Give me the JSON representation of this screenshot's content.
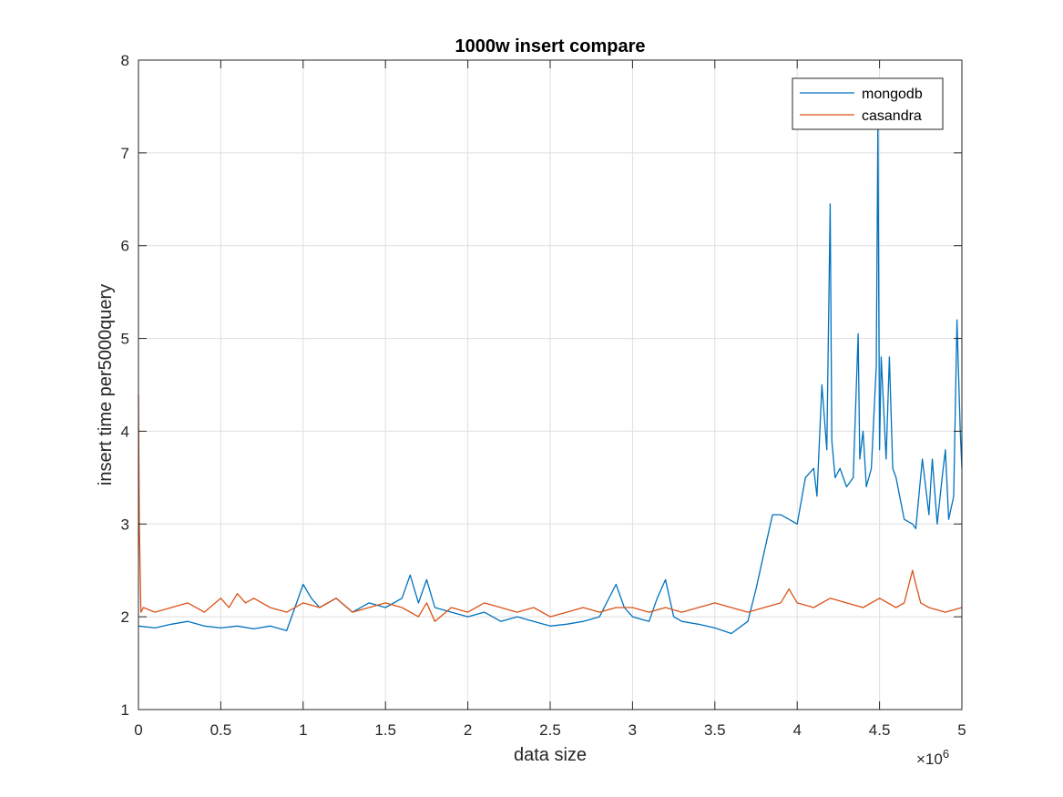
{
  "chart_data": {
    "type": "line",
    "title": "1000w insert compare",
    "xlabel": "data size",
    "ylabel": "insert time per5000query",
    "x_exponent_label": "×10",
    "x_exponent_power": "6",
    "xlim": [
      0,
      5000000
    ],
    "ylim": [
      1,
      8
    ],
    "x_ticks": [
      0,
      500000,
      1000000,
      1500000,
      2000000,
      2500000,
      3000000,
      3500000,
      4000000,
      4500000,
      5000000
    ],
    "x_tick_labels": [
      "0",
      "0.5",
      "1",
      "1.5",
      "2",
      "2.5",
      "3",
      "3.5",
      "4",
      "4.5",
      "5"
    ],
    "y_ticks": [
      1,
      2,
      3,
      4,
      5,
      6,
      7,
      8
    ],
    "y_tick_labels": [
      "1",
      "2",
      "3",
      "4",
      "5",
      "6",
      "7",
      "8"
    ],
    "grid": true,
    "legend_position": "top-right",
    "series": [
      {
        "name": "mongodb",
        "color": "#0072BD",
        "x": [
          0,
          100000,
          200000,
          300000,
          400000,
          500000,
          600000,
          700000,
          800000,
          900000,
          950000,
          1000000,
          1050000,
          1100000,
          1200000,
          1300000,
          1400000,
          1500000,
          1600000,
          1650000,
          1700000,
          1750000,
          1800000,
          1900000,
          2000000,
          2100000,
          2200000,
          2300000,
          2400000,
          2500000,
          2600000,
          2700000,
          2800000,
          2900000,
          2950000,
          3000000,
          3100000,
          3150000,
          3200000,
          3250000,
          3300000,
          3400000,
          3500000,
          3600000,
          3700000,
          3750000,
          3800000,
          3850000,
          3900000,
          3950000,
          4000000,
          4050000,
          4100000,
          4120000,
          4150000,
          4180000,
          4200000,
          4210000,
          4230000,
          4260000,
          4300000,
          4340000,
          4370000,
          4380000,
          4400000,
          4420000,
          4450000,
          4480000,
          4490000,
          4500000,
          4510000,
          4540000,
          4560000,
          4580000,
          4600000,
          4650000,
          4700000,
          4720000,
          4760000,
          4800000,
          4820000,
          4850000,
          4880000,
          4900000,
          4920000,
          4950000,
          4970000,
          4990000,
          5000000
        ],
        "y": [
          1.9,
          1.88,
          1.92,
          1.95,
          1.9,
          1.88,
          1.9,
          1.87,
          1.9,
          1.85,
          2.1,
          2.35,
          2.2,
          2.1,
          2.2,
          2.05,
          2.15,
          2.1,
          2.2,
          2.45,
          2.15,
          2.4,
          2.1,
          2.05,
          2.0,
          2.05,
          1.95,
          2.0,
          1.95,
          1.9,
          1.92,
          1.95,
          2.0,
          2.35,
          2.1,
          2.0,
          1.95,
          2.2,
          2.4,
          2.0,
          1.95,
          1.92,
          1.88,
          1.82,
          1.95,
          2.3,
          2.7,
          3.1,
          3.1,
          3.05,
          3.0,
          3.5,
          3.6,
          3.3,
          4.5,
          3.8,
          6.45,
          3.9,
          3.5,
          3.6,
          3.4,
          3.5,
          5.05,
          3.7,
          4.0,
          3.4,
          3.6,
          4.7,
          7.35,
          3.8,
          4.8,
          3.7,
          4.8,
          3.6,
          3.5,
          3.05,
          3.0,
          2.95,
          3.7,
          3.1,
          3.7,
          3.0,
          3.5,
          3.8,
          3.05,
          3.3,
          5.2,
          4.0,
          3.6
        ]
      },
      {
        "name": "casandra",
        "color": "#D95319",
        "x": [
          0,
          5000,
          15000,
          30000,
          100000,
          200000,
          300000,
          400000,
          500000,
          550000,
          600000,
          650000,
          700000,
          800000,
          900000,
          1000000,
          1100000,
          1200000,
          1300000,
          1400000,
          1500000,
          1600000,
          1700000,
          1750000,
          1800000,
          1900000,
          2000000,
          2100000,
          2200000,
          2300000,
          2400000,
          2500000,
          2600000,
          2700000,
          2800000,
          2900000,
          3000000,
          3100000,
          3200000,
          3300000,
          3400000,
          3500000,
          3600000,
          3700000,
          3800000,
          3900000,
          3950000,
          4000000,
          4100000,
          4200000,
          4300000,
          4400000,
          4500000,
          4600000,
          4650000,
          4700000,
          4720000,
          4750000,
          4800000,
          4900000,
          5000000
        ],
        "y": [
          4.4,
          3.0,
          2.05,
          2.1,
          2.05,
          2.1,
          2.15,
          2.05,
          2.2,
          2.1,
          2.25,
          2.15,
          2.2,
          2.1,
          2.05,
          2.15,
          2.1,
          2.2,
          2.05,
          2.1,
          2.15,
          2.1,
          2.0,
          2.15,
          1.95,
          2.1,
          2.05,
          2.15,
          2.1,
          2.05,
          2.1,
          2.0,
          2.05,
          2.1,
          2.05,
          2.1,
          2.1,
          2.05,
          2.1,
          2.05,
          2.1,
          2.15,
          2.1,
          2.05,
          2.1,
          2.15,
          2.3,
          2.15,
          2.1,
          2.2,
          2.15,
          2.1,
          2.2,
          2.1,
          2.15,
          2.5,
          2.35,
          2.15,
          2.1,
          2.05,
          2.1
        ]
      }
    ]
  }
}
